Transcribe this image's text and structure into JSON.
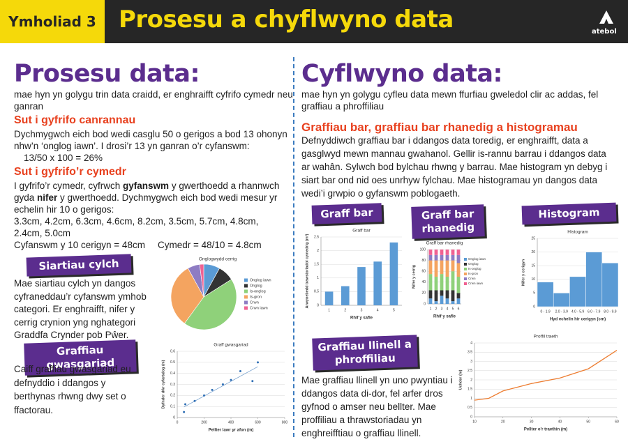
{
  "header": {
    "badge": "Ymholiad 3",
    "title": "Prosesu a chyflwyno data",
    "logo": "atebol"
  },
  "left": {
    "heading": "Prosesu data:",
    "intro": "mae hyn yn golygu trin data craidd, er enghraifft cyfrifo cymedr neu ganran",
    "percentage": {
      "heading": "Sut i gyfrifo canrannau",
      "text": "Dychmygwch eich bod wedi casglu 50 o gerigos a bod 13 ohonyn nhw’n ‘onglog iawn’. I drosi’r 13 yn ganran o’r cyfanswm:",
      "formula": "13/50 x 100 = 26%"
    },
    "mean": {
      "heading": "Sut i gyfrifo’r cymedr",
      "text": [
        "I gyfrifo’r cymedr, cyfrwch ",
        "gyfanswm",
        " y gwerthoedd a rhannwch gyda ",
        "nifer",
        " y gwerthoedd. Dychmygwch eich bod wedi mesur yr echelin hir 10 o gerigos:"
      ],
      "measurements": "3.3cm, 4.2cm, 6.3cm, 4.6cm, 8.2cm, 3.5cm, 5.7cm, 4.8cm, 2.4cm, 5.0cm",
      "total": "Cyfanswm y 10 cerigyn = 48cm",
      "result": "Cymedr = 48/10 = 4.8cm"
    },
    "pie_section": {
      "label": "Siartiau cylch",
      "text": "Mae siartiau cylch yn dangos cyfraneddau’r cyfanswm ymhob categori. Er enghraifft, nifer y cerrig crynion yng nghategori Graddfa Crynder pob Pŵer."
    },
    "scatter_section": {
      "label": "Graffiau gwasgariad",
      "text": "Caiff graffiau gwasgariad eu defnyddio i ddangos y berthynas rhwng dwy set o ffactorau."
    }
  },
  "right": {
    "heading": "Cyflwyno data:",
    "intro": "mae hyn yn golygu cyfleu data mewn ffurfiau gweledol clir ac addas, fel graffiau a phroffiliau",
    "bars": {
      "heading": "Graffiau bar, graffiau bar rhanedig a histogramau",
      "text": "Defnyddiwch graffiau bar i ddangos data toredig, er enghraifft, data a gasglwyd mewn mannau gwahanol. Gellir is-rannu barrau i ddangos data ar wahân. Sylwch bod bylchau rhwng y barrau. Mae histogram yn debyg i siart bar ond nid oes unrhyw fylchau. Mae histogramau yn dangos data wedi’i grwpio o gyfanswm poblogaeth.",
      "labels": [
        "Graff bar",
        "Graff bar rhanedig",
        "Histogram"
      ]
    },
    "line_section": {
      "label": "Graffiau llinell a phroffiliau",
      "text": "Mae graffiau llinell yn uno pwyntiau i ddangos data di-dor, fel arfer dros gyfnod o amser neu bellter. Mae proffiliau a thrawstoriadau yn enghreifftiau o graffiau llinell."
    }
  },
  "chart_data": [
    {
      "type": "pie",
      "title": "Onglogwydd cerrig",
      "categories": [
        "Onglog iawn",
        "Onglog",
        "Is-onglog",
        "Is-gron",
        "Crwn",
        "Crwn iawn"
      ],
      "values": [
        8,
        8,
        44,
        32,
        6,
        2
      ],
      "colors": [
        "#5b9bd5",
        "#333333",
        "#8fd17a",
        "#f4a460",
        "#8e7cc3",
        "#f06292"
      ]
    },
    {
      "type": "scatter",
      "title": "Graff gwasgariad",
      "x_label": "Pellter lawr yr afon (m)",
      "y_label": "Dyfnder dŵr cyfartalog (m)",
      "x": [
        50,
        60,
        130,
        200,
        260,
        340,
        400,
        470,
        560,
        600
      ],
      "values": [
        0.05,
        0.12,
        0.15,
        0.2,
        0.25,
        0.3,
        0.34,
        0.42,
        0.33,
        0.5
      ],
      "color": "#2f6fb5",
      "trendline": true,
      "xlim": [
        0,
        800
      ],
      "xticks": [
        0,
        200,
        400,
        600,
        800
      ],
      "ylim": [
        0,
        0.6
      ],
      "yticks": [
        0,
        0.1,
        0.2,
        0.3,
        0.4,
        0.5,
        0.6
      ],
      "grid": true
    },
    {
      "type": "bar",
      "title": "Graff bar",
      "x_label": "Rhif y safle",
      "y_label": "Arwynebedd trawstoriadol cymedrig (m²)",
      "categories": [
        "1",
        "2",
        "3",
        "4",
        "5"
      ],
      "values": [
        0.5,
        0.7,
        1.4,
        1.6,
        2.3
      ],
      "color": "#5b9bd5",
      "ylim": [
        0,
        2.5
      ],
      "yticks": [
        0,
        0.5,
        1,
        1.5,
        2,
        2.5
      ],
      "grid": true
    },
    {
      "type": "stacked_bar",
      "title": "Graff bar rhanedig",
      "x_label": "Rhif y safle",
      "y_label": "Nifer y cerrig",
      "categories": [
        "1",
        "2",
        "3",
        "4",
        "5",
        "6"
      ],
      "series": [
        {
          "name": "Onglog iawn",
          "color": "#5b9bd5",
          "values": [
            10,
            5,
            15,
            10,
            5,
            10
          ]
        },
        {
          "name": "Onglog",
          "color": "#333333",
          "values": [
            15,
            20,
            10,
            15,
            20,
            10
          ]
        },
        {
          "name": "Is-onglog",
          "color": "#8fd17a",
          "values": [
            30,
            25,
            30,
            25,
            35,
            30
          ]
        },
        {
          "name": "Is-gron",
          "color": "#f4a460",
          "values": [
            25,
            30,
            25,
            30,
            20,
            25
          ]
        },
        {
          "name": "Crwn",
          "color": "#8e7cc3",
          "values": [
            10,
            10,
            10,
            10,
            10,
            15
          ]
        },
        {
          "name": "Crwn iawn",
          "color": "#f06292",
          "values": [
            10,
            10,
            10,
            10,
            10,
            10
          ]
        }
      ],
      "ylim": [
        0,
        100
      ],
      "yticks": [
        0,
        20,
        40,
        60,
        80,
        100
      ],
      "grid": true
    },
    {
      "type": "histogram",
      "title": "Histogram",
      "x_label": "Hyd echelin hir cerigyn (cm)",
      "y_label": "Nifer y cerigyn",
      "categories": [
        "0 - 1.9",
        "2.0 - 3.9",
        "4.0 - 5.9",
        "6.0 - 7.9",
        "8.0 - 9.9"
      ],
      "values": [
        9,
        5,
        11,
        20,
        16
      ],
      "color": "#5b9bd5",
      "ylim": [
        0,
        25
      ],
      "yticks": [
        0,
        5,
        10,
        15,
        20,
        25
      ],
      "grid": true
    },
    {
      "type": "line",
      "title": "Proffil traeth",
      "x_label": "Pellter o’r traethin (m)",
      "y_label": "Uchder (m)",
      "x": [
        10,
        15,
        20,
        30,
        40,
        50,
        60
      ],
      "values": [
        0.9,
        1.0,
        1.4,
        1.8,
        2.1,
        2.6,
        3.6
      ],
      "color": "#ed7d31",
      "xlim": [
        10,
        60
      ],
      "xticks": [
        10,
        20,
        30,
        40,
        50,
        60
      ],
      "ylim": [
        0,
        4
      ],
      "yticks": [
        0,
        0.5,
        1,
        1.5,
        2,
        2.5,
        3,
        3.5,
        4
      ],
      "grid": true
    }
  ]
}
